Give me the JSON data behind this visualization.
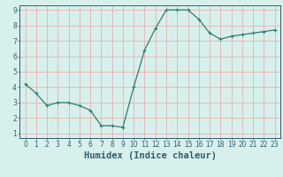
{
  "x": [
    0,
    1,
    2,
    3,
    4,
    5,
    6,
    7,
    8,
    9,
    10,
    11,
    12,
    13,
    14,
    15,
    16,
    17,
    18,
    19,
    20,
    21,
    22,
    23
  ],
  "y": [
    4.2,
    3.6,
    2.8,
    3.0,
    3.0,
    2.8,
    2.5,
    1.5,
    1.5,
    1.4,
    4.0,
    6.4,
    7.8,
    9.0,
    9.0,
    9.0,
    8.4,
    7.5,
    7.1,
    7.3,
    7.4,
    7.5,
    7.6,
    7.7
  ],
  "line_color": "#2e7d6e",
  "marker": "+",
  "marker_size": 3,
  "bg_color": "#d8f0ec",
  "grid_color": "#e8b0b0",
  "xlabel": "Humidex (Indice chaleur)",
  "tick_color": "#2e5e6e",
  "ylim_min": 0.7,
  "ylim_max": 9.3,
  "xlim_min": -0.5,
  "xlim_max": 23.5,
  "yticks": [
    1,
    2,
    3,
    4,
    5,
    6,
    7,
    8,
    9
  ],
  "xticks": [
    0,
    1,
    2,
    3,
    4,
    5,
    6,
    7,
    8,
    9,
    10,
    11,
    12,
    13,
    14,
    15,
    16,
    17,
    18,
    19,
    20,
    21,
    22,
    23
  ],
  "tick_label_size": 5.5,
  "xlabel_size": 7.5,
  "linewidth": 0.9,
  "marker_edge_width": 0.8
}
